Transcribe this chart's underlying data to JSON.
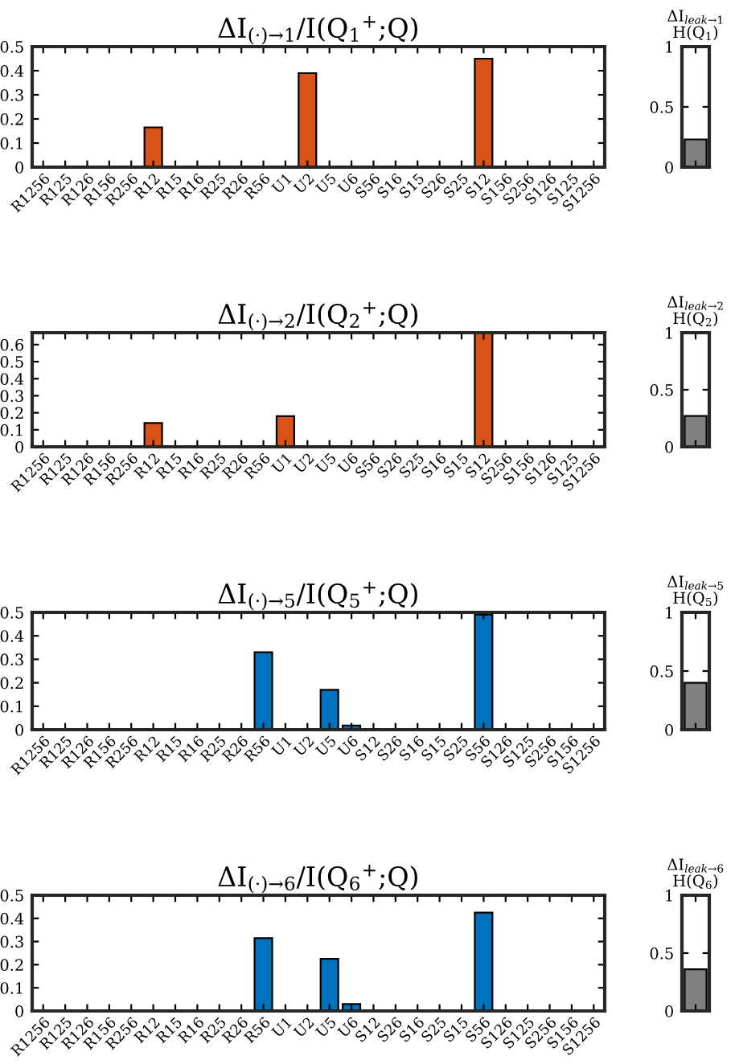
{
  "chart_data": [
    {
      "type": "bar",
      "title": "ΔI$_{(·)→1}$/I(Q$_{1}$$^{+}$;Q)",
      "categories": [
        "R1256",
        "R125",
        "R126",
        "R156",
        "R256",
        "R12",
        "R15",
        "R16",
        "R25",
        "R26",
        "R56",
        "U1",
        "U2",
        "U5",
        "U6",
        "S56",
        "S16",
        "S15",
        "S26",
        "S25",
        "S12",
        "S156",
        "S256",
        "S126",
        "S125",
        "S1256"
      ],
      "series": [
        {
          "color": "#d95319",
          "values": [
            0,
            0,
            0,
            0,
            0,
            0.165,
            0,
            0,
            0,
            0,
            0,
            0,
            0.39,
            0,
            0,
            0,
            0,
            0,
            0,
            0,
            0.45,
            0,
            0,
            0,
            0,
            0
          ]
        }
      ],
      "ylim": [
        0,
        0.5
      ],
      "yticks": [
        0,
        0.1,
        0.2,
        0.3,
        0.4,
        0.5
      ],
      "grid": false
    },
    {
      "type": "bar",
      "title": "ΔI$_{leak→1}$\nH(Q$_{1}$)",
      "categories": [
        null
      ],
      "series": [
        {
          "color": "#808080",
          "values": [
            0.23
          ]
        }
      ],
      "ylim": [
        0,
        1
      ],
      "yticks": [
        0,
        0.5,
        1
      ],
      "grid": false
    },
    {
      "type": "bar",
      "title": "ΔI$_{(·)→2}$/I(Q$_{2}$$^{+}$;Q)",
      "categories": [
        "R1256",
        "R125",
        "R126",
        "R156",
        "R256",
        "R12",
        "R15",
        "R16",
        "R25",
        "R26",
        "R56",
        "U1",
        "U2",
        "U5",
        "U6",
        "S56",
        "S26",
        "S25",
        "S16",
        "S15",
        "S12",
        "S256",
        "S156",
        "S126",
        "S125",
        "S1256"
      ],
      "series": [
        {
          "color": "#d95319",
          "values": [
            0,
            0,
            0,
            0,
            0,
            0.14,
            0,
            0,
            0,
            0,
            0,
            0.18,
            0,
            0,
            0,
            0,
            0,
            0,
            0,
            0,
            0.67,
            0,
            0,
            0,
            0,
            0
          ]
        }
      ],
      "ylim": [
        0,
        0.67
      ],
      "yticks": [
        0,
        0.1,
        0.2,
        0.3,
        0.4,
        0.5,
        0.6
      ],
      "grid": false
    },
    {
      "type": "bar",
      "title": "ΔI$_{leak→2}$\nH(Q$_{2}$)",
      "categories": [
        null
      ],
      "series": [
        {
          "color": "#808080",
          "values": [
            0.27
          ]
        }
      ],
      "ylim": [
        0,
        1
      ],
      "yticks": [
        0,
        0.5,
        1
      ],
      "grid": false
    },
    {
      "type": "bar",
      "title": "ΔI$_{(·)→5}$/I(Q$_{5}$$^{+}$;Q)",
      "categories": [
        "R1256",
        "R125",
        "R126",
        "R156",
        "R256",
        "R12",
        "R15",
        "R16",
        "R25",
        "R26",
        "R56",
        "U1",
        "U2",
        "U5",
        "U6",
        "S12",
        "S26",
        "S16",
        "S15",
        "S25",
        "S56",
        "S126",
        "S125",
        "S256",
        "S156",
        "S1256"
      ],
      "series": [
        {
          "color": "#0072bd",
          "values": [
            0,
            0,
            0,
            0,
            0,
            0,
            0,
            0,
            0,
            0,
            0.33,
            0,
            0,
            0.17,
            0.018,
            0,
            0,
            0,
            0,
            0,
            0.49,
            0,
            0,
            0,
            0,
            0
          ]
        }
      ],
      "ylim": [
        0,
        0.5
      ],
      "yticks": [
        0,
        0.1,
        0.2,
        0.3,
        0.4,
        0.5
      ],
      "grid": false
    },
    {
      "type": "bar",
      "title": "ΔI$_{leak→5}$\nH(Q$_{5}$)",
      "categories": [
        null
      ],
      "series": [
        {
          "color": "#808080",
          "values": [
            0.4
          ]
        }
      ],
      "ylim": [
        0,
        1
      ],
      "yticks": [
        0,
        0.5,
        1
      ],
      "grid": false
    },
    {
      "type": "bar",
      "title": "ΔI$_{(·)→6}$/I(Q$_{6}$$^{+}$;Q)",
      "categories": [
        "R1256",
        "R125",
        "R126",
        "R156",
        "R256",
        "R12",
        "R15",
        "R16",
        "R25",
        "R26",
        "R56",
        "U1",
        "U2",
        "U5",
        "U6",
        "S12",
        "S26",
        "S16",
        "S25",
        "S15",
        "S56",
        "S126",
        "S125",
        "S256",
        "S156",
        "S1256"
      ],
      "series": [
        {
          "color": "#0072bd",
          "values": [
            0,
            0,
            0,
            0,
            0,
            0,
            0,
            0,
            0,
            0,
            0.315,
            0,
            0,
            0.225,
            0.03,
            0,
            0,
            0,
            0,
            0,
            0.425,
            0,
            0,
            0,
            0,
            0
          ]
        }
      ],
      "ylim": [
        0,
        0.5
      ],
      "yticks": [
        0,
        0.1,
        0.2,
        0.3,
        0.4,
        0.5
      ],
      "grid": false
    },
    {
      "type": "bar",
      "title": "ΔI$_{leak→6}$\nH(Q$_{6}$)",
      "categories": [
        null
      ],
      "series": [
        {
          "color": "#808080",
          "values": [
            0.36
          ]
        }
      ],
      "ylim": [
        0,
        1
      ],
      "yticks": [
        0,
        0.5,
        1
      ],
      "grid": false
    }
  ]
}
